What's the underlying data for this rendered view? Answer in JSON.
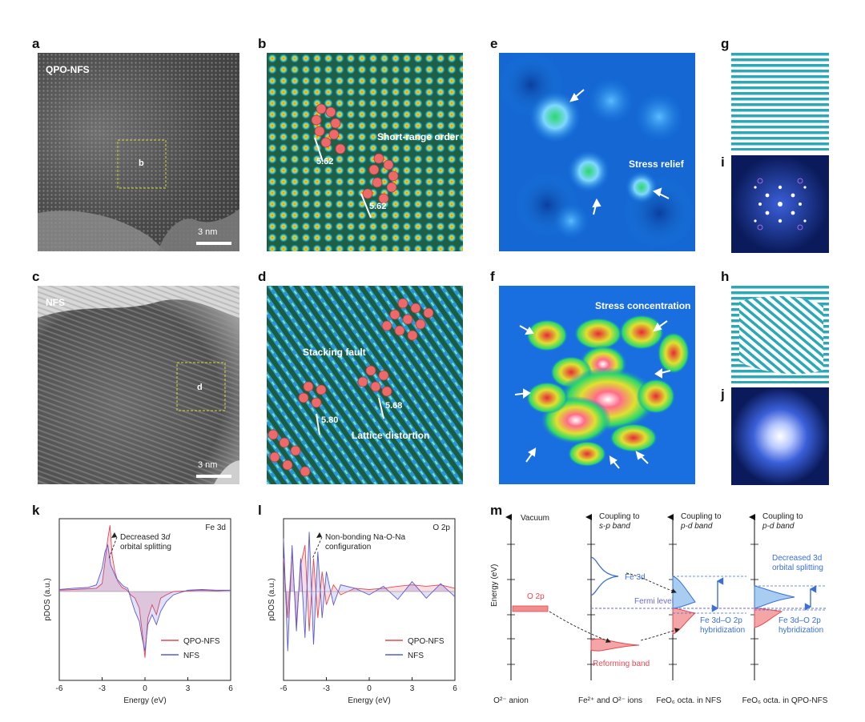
{
  "panels": {
    "a": {
      "letter": "a",
      "sample": "QPO-NFS",
      "box_label": "b",
      "scale": "3 nm"
    },
    "b": {
      "letter": "b",
      "annotation": "Short-range order",
      "dist1": "5.62",
      "dist2": "5.62"
    },
    "c": {
      "letter": "c",
      "sample": "NFS",
      "box_label": "d",
      "scale": "3 nm"
    },
    "d": {
      "letter": "d",
      "annotation1": "Stacking fault",
      "annotation2": "Lattice distortion",
      "dist1": "5.80",
      "dist2": "5.68"
    },
    "e": {
      "letter": "e",
      "annotation": "Stress relief"
    },
    "f": {
      "letter": "f",
      "annotation": "Stress concentration"
    },
    "g": {
      "letter": "g"
    },
    "h": {
      "letter": "h"
    },
    "i": {
      "letter": "i"
    },
    "j": {
      "letter": "j"
    }
  },
  "chart_data": [
    {
      "id": "k",
      "type": "line",
      "letter": "k",
      "title": "Fe 3d",
      "xlabel": "Energy (eV)",
      "ylabel": "pDOS (a.u.)",
      "xlim": [
        -6,
        6
      ],
      "xticks": [
        "-6",
        "-3",
        "0",
        "3",
        "6"
      ],
      "annotation": "Decreased 3d orbital splitting",
      "annotation_line1": "Decreased 3",
      "annotation_line1_it": "d",
      "annotation_line2": "orbital splitting",
      "series": [
        {
          "name": "QPO-NFS",
          "color": "#e8474f",
          "x": [
            -6,
            -5,
            -4,
            -3.4,
            -3,
            -2.8,
            -2.6,
            -2.45,
            -2.3,
            -2.1,
            -1.9,
            -1.6,
            -1.3,
            -1,
            -0.7,
            -0.4,
            -0.2,
            0,
            0.2,
            0.5,
            0.8,
            1.1,
            1.5,
            2,
            3,
            4,
            5,
            6
          ],
          "y": [
            0.02,
            0.03,
            0.04,
            0.05,
            0.12,
            0.45,
            0.8,
            1.0,
            0.55,
            0.3,
            0.15,
            0.06,
            0.03,
            -0.05,
            -0.1,
            -0.25,
            -0.6,
            -1.0,
            -0.4,
            -0.2,
            -0.35,
            -0.1,
            -0.05,
            0,
            0.01,
            0.02,
            0.01,
            0.02
          ]
        },
        {
          "name": "NFS",
          "color": "#5a5ad6",
          "x": [
            -6,
            -5,
            -4,
            -3.4,
            -3,
            -2.8,
            -2.6,
            -2.4,
            -2.2,
            -2,
            -1.8,
            -1.5,
            -1.2,
            -1,
            -0.7,
            -0.4,
            -0.2,
            0,
            0.2,
            0.5,
            0.8,
            1.1,
            1.5,
            2,
            3,
            4,
            5,
            6
          ],
          "y": [
            0.03,
            0.05,
            0.06,
            0.1,
            0.35,
            0.6,
            0.7,
            0.4,
            0.3,
            0.2,
            0.15,
            0.08,
            0.05,
            -0.1,
            -0.3,
            -0.45,
            -0.7,
            -0.9,
            -0.5,
            -0.35,
            -0.5,
            -0.3,
            -0.15,
            -0.05,
            0.02,
            0.03,
            0.02,
            0.02
          ]
        }
      ]
    },
    {
      "id": "l",
      "type": "line",
      "letter": "l",
      "title": "O 2p",
      "xlabel": "Energy (eV)",
      "ylabel": "pDOS (a.u.)",
      "xlim": [
        -6,
        6
      ],
      "xticks": [
        "-6",
        "-3",
        "0",
        "3",
        "6"
      ],
      "annotation": "Non-bonding Na-O-Na configuration",
      "annotation_line1": "Non-bonding Na-O-Na",
      "annotation_line2": "configuration",
      "series": [
        {
          "name": "QPO-NFS",
          "color": "#e8474f",
          "x": [
            -6,
            -5.7,
            -5.4,
            -5.1,
            -4.8,
            -4.5,
            -4.2,
            -3.9,
            -3.6,
            -3.3,
            -3,
            -2.5,
            -2,
            -1,
            0,
            1,
            2,
            3,
            4,
            5,
            6
          ],
          "y": [
            0.5,
            -0.4,
            0.6,
            -0.5,
            0.4,
            0.7,
            -0.6,
            0.5,
            -0.4,
            0.3,
            -0.2,
            0.1,
            -0.05,
            0.05,
            0.03,
            0.05,
            0.08,
            0.1,
            0.08,
            0.1,
            0.05
          ]
        },
        {
          "name": "NFS",
          "color": "#5a5ad6",
          "x": [
            -6,
            -5.7,
            -5.4,
            -5.1,
            -4.8,
            -4.5,
            -4.2,
            -3.9,
            -3.6,
            -3.3,
            -3,
            -2.5,
            -2,
            -1,
            0,
            1,
            2,
            3,
            4,
            5,
            6
          ],
          "y": [
            0.8,
            -0.9,
            0.7,
            -0.6,
            0.5,
            -0.7,
            0.9,
            -0.8,
            0.6,
            -0.4,
            0.3,
            -0.2,
            0.1,
            0.05,
            -0.05,
            0.08,
            -0.12,
            0.15,
            -0.1,
            0.12,
            -0.08
          ]
        }
      ]
    }
  ],
  "diagram_m": {
    "letter": "m",
    "ylabel": "Energy (eV)",
    "vacuum": "Vacuum",
    "o2p": "O 2p",
    "coupling_sp_1": "Coupling to",
    "coupling_sp_2": "s-p band",
    "coupling_pd_1": "Coupling to",
    "coupling_pd_2": "p-d band",
    "fe3d": "Fe 3d",
    "fermi": "Fermi level",
    "reforming": "Reforming band",
    "decreased_1": "Decreased 3d",
    "decreased_2": "orbital splitting",
    "hyb_1": "Fe 3d–O 2p",
    "hyb_2": "hybridization",
    "col_labels": [
      "O²⁻ anion",
      "Fe²⁺ and O²⁻ ions",
      "FeO₆ octa. in NFS",
      "FeO₆ octa. in QPO-NFS"
    ],
    "colors": {
      "blue": "#3a6fd8",
      "red": "#e8474f",
      "fill_blue": "#a9cdf0",
      "fill_red": "#f4a6a6",
      "fermi": "#6b6bd8"
    }
  }
}
